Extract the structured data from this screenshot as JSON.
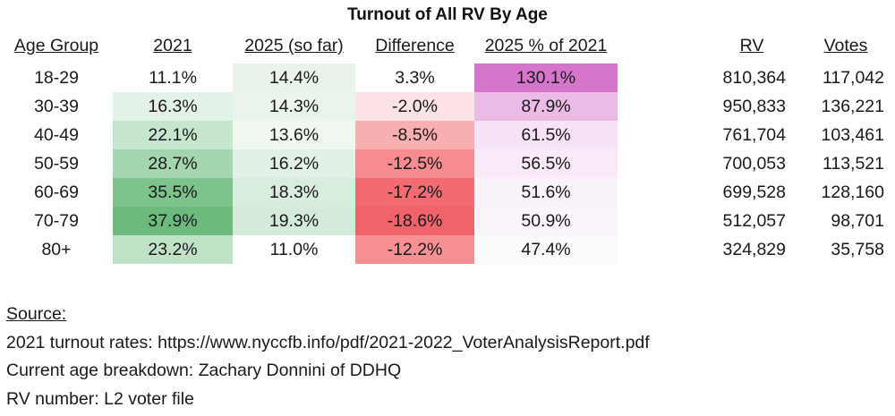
{
  "title": "Turnout of All RV By Age",
  "headers": {
    "age_group": "Age Group",
    "y2021": "2021",
    "y2025": "2025 (so far)",
    "difference": "Difference",
    "pct_of_2021": "2025 % of 2021",
    "rv": "RV",
    "votes": "Votes"
  },
  "rows": [
    {
      "age": "18-29",
      "y2021": "11.1%",
      "y2025": "14.4%",
      "diff": "3.3%",
      "pct": "130.1%",
      "rv": "810,364",
      "votes": "117,042"
    },
    {
      "age": "30-39",
      "y2021": "16.3%",
      "y2025": "14.3%",
      "diff": "-2.0%",
      "pct": "87.9%",
      "rv": "950,833",
      "votes": "136,221"
    },
    {
      "age": "40-49",
      "y2021": "22.1%",
      "y2025": "13.6%",
      "diff": "-8.5%",
      "pct": "61.5%",
      "rv": "761,704",
      "votes": "103,461"
    },
    {
      "age": "50-59",
      "y2021": "28.7%",
      "y2025": "16.2%",
      "diff": "-12.5%",
      "pct": "56.5%",
      "rv": "700,053",
      "votes": "113,521"
    },
    {
      "age": "60-69",
      "y2021": "35.5%",
      "y2025": "18.3%",
      "diff": "-17.2%",
      "pct": "51.6%",
      "rv": "699,528",
      "votes": "128,160"
    },
    {
      "age": "70-79",
      "y2021": "37.9%",
      "y2025": "19.3%",
      "diff": "-18.6%",
      "pct": "50.9%",
      "rv": "512,057",
      "votes": "98,701"
    },
    {
      "age": "80+",
      "y2021": "23.2%",
      "y2025": "11.0%",
      "diff": "-12.2%",
      "pct": "47.4%",
      "rv": "324,829",
      "votes": "35,758"
    }
  ],
  "cell_colors": {
    "y2021": [
      "#ffffff",
      "#e3f2e6",
      "#c6e6cd",
      "#a3d5ae",
      "#7cc38c",
      "#6dba7f",
      "#c0e2c7"
    ],
    "y2025": [
      "#e8f4ea",
      "#e9f5eb",
      "#f0f8f1",
      "#e2f1e5",
      "#d9edde",
      "#d5ebda",
      "#ffffff"
    ],
    "diff": [
      "#ffffff",
      "#fde3e6",
      "#f9aeb0",
      "#f68c8f",
      "#f36b70",
      "#f1636a",
      "#f69092"
    ],
    "pct": [
      "#d675cc",
      "#ebbbe6",
      "#f6e3f5",
      "#f8ebf7",
      "#faf2fa",
      "#fbf4fb",
      "#fdfafd"
    ]
  },
  "source": {
    "heading": "Source:",
    "line1": "2021 turnout rates: https://www.nyccfb.info/pdf/2021-2022_VoterAnalysisReport.pdf",
    "line2": "Current age breakdown: Zachary Donnini of DDHQ",
    "line3": "RV number: L2 voter file"
  }
}
